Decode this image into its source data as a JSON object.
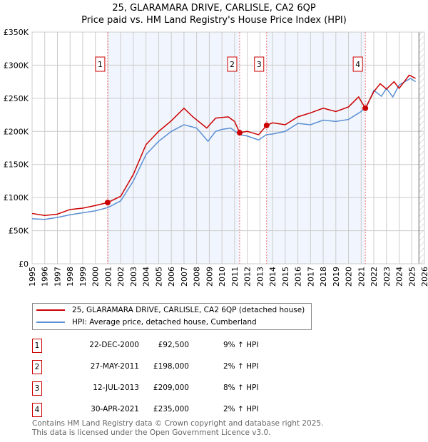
{
  "chart_data": {
    "type": "line",
    "title": "25, GLARAMARA DRIVE, CARLISLE, CA2 6QP",
    "subtitle": "Price paid vs. HM Land Registry's House Price Index (HPI)",
    "xlim": [
      1995,
      2026
    ],
    "ylim": [
      0,
      350000
    ],
    "x_ticks": [
      "1995",
      "1996",
      "1997",
      "1998",
      "1999",
      "2000",
      "2001",
      "2002",
      "2003",
      "2004",
      "2005",
      "2006",
      "2007",
      "2008",
      "2009",
      "2010",
      "2011",
      "2012",
      "2013",
      "2014",
      "2015",
      "2016",
      "2017",
      "2018",
      "2019",
      "2020",
      "2021",
      "2022",
      "2023",
      "2024",
      "2025",
      "2026"
    ],
    "y_ticks": [
      {
        "v": 0,
        "label": "£0"
      },
      {
        "v": 50000,
        "label": "£50K"
      },
      {
        "v": 100000,
        "label": "£100K"
      },
      {
        "v": 150000,
        "label": "£150K"
      },
      {
        "v": 200000,
        "label": "£200K"
      },
      {
        "v": 250000,
        "label": "£250K"
      },
      {
        "v": 300000,
        "label": "£300K"
      },
      {
        "v": 350000,
        "label": "£350K"
      }
    ],
    "grid": true,
    "series": [
      {
        "name": "25, GLARAMARA DRIVE, CARLISLE, CA2 6QP (detached house)",
        "color": "#cc0000",
        "x": [
          1995,
          1996,
          1997,
          1998,
          1999,
          2000,
          2000.97,
          2002,
          2003,
          2004,
          2005,
          2006,
          2007,
          2007.7,
          2008.8,
          2009.5,
          2010.5,
          2011,
          2011.4,
          2012,
          2012.9,
          2013.53,
          2014,
          2015,
          2016,
          2017,
          2018,
          2019,
          2020,
          2020.8,
          2021.33,
          2022,
          2022.5,
          2023,
          2023.6,
          2024,
          2024.8,
          2025.3
        ],
        "y": [
          76000,
          73000,
          75000,
          82000,
          84000,
          88000,
          92500,
          102000,
          135000,
          180000,
          200000,
          216000,
          235000,
          222000,
          205000,
          220000,
          222000,
          215000,
          198000,
          200000,
          195000,
          209000,
          213000,
          210000,
          222000,
          228000,
          235000,
          230000,
          237000,
          252000,
          235000,
          260000,
          272000,
          264000,
          275000,
          265000,
          285000,
          280000
        ]
      },
      {
        "name": "HPI: Average price, detached house, Cumberland",
        "color": "#5b8fd4",
        "x": [
          1995,
          1996,
          1997,
          1998,
          1999,
          2000,
          2001,
          2002,
          2003,
          2004,
          2005,
          2006,
          2007,
          2008,
          2008.9,
          2009.5,
          2010,
          2010.7,
          2011.4,
          2012,
          2012.9,
          2013.5,
          2014,
          2015,
          2016,
          2017,
          2018,
          2019,
          2020,
          2021,
          2021.5,
          2022,
          2022.6,
          2023,
          2023.5,
          2024,
          2024.9,
          2025.3
        ],
        "y": [
          68000,
          67000,
          70000,
          74000,
          77000,
          80000,
          85000,
          95000,
          125000,
          165000,
          185000,
          200000,
          210000,
          205000,
          185000,
          200000,
          203000,
          205000,
          195000,
          193000,
          187000,
          195000,
          196000,
          200000,
          212000,
          210000,
          217000,
          215000,
          218000,
          230000,
          240000,
          262000,
          253000,
          265000,
          252000,
          270000,
          280000,
          275000
        ]
      }
    ],
    "sales": [
      {
        "n": "1",
        "x": 2000.97,
        "y": 92500,
        "date": "22-DEC-2000",
        "price": "£92,500",
        "hpi": "9% ↑ HPI"
      },
      {
        "n": "2",
        "x": 2011.4,
        "y": 198000,
        "date": "27-MAY-2011",
        "price": "£198,000",
        "hpi": "2% ↑ HPI"
      },
      {
        "n": "3",
        "x": 2013.53,
        "y": 209000,
        "date": "12-JUL-2013",
        "price": "£209,000",
        "hpi": "8% ↑ HPI"
      },
      {
        "n": "4",
        "x": 2021.33,
        "y": 235000,
        "date": "30-APR-2021",
        "price": "£235,000",
        "hpi": "2% ↑ HPI"
      }
    ],
    "forecast_from": 2025.0,
    "legend_position": "below"
  },
  "footer": {
    "line1": "Contains HM Land Registry data © Crown copyright and database right 2025.",
    "line2": "This data is licensed under the Open Government Licence v3.0."
  }
}
